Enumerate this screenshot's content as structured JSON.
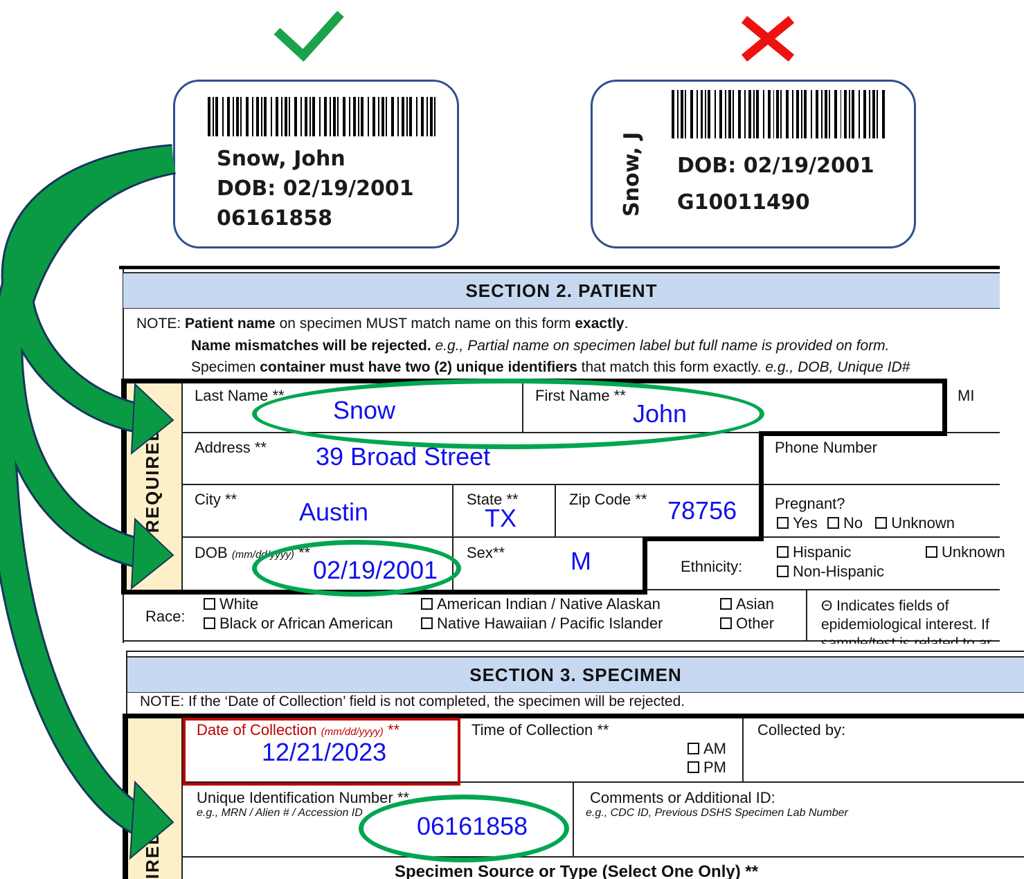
{
  "marks": {
    "correct_icon": "check-mark",
    "incorrect_icon": "x-mark",
    "check_color": "#1aa34a",
    "x_color": "#ee1111"
  },
  "good_label": {
    "name": "Snow, John",
    "dob": "DOB: 02/19/2001",
    "id": "06161858"
  },
  "bad_label": {
    "name": "Snow, J",
    "dob": "DOB: 02/19/2001",
    "id": "G10011490"
  },
  "section2": {
    "title": "SECTION 2. PATIENT",
    "note_prefix": "NOTE:",
    "note1_bold": "Patient name",
    "note1_mid": "on specimen MUST match name on this form",
    "note1_bold2": "exactly",
    "note2_bold": "Name mismatches will be rejected.",
    "note2_italic": "e.g., Partial name on specimen label but full name is provided on form.",
    "note3_a": "Specimen",
    "note3_bold": "container must have two (2) unique identifiers",
    "note3_b": "that match this form exactly.",
    "note3_italic": "e.g., DOB, Unique ID#",
    "required_label": "REQUIRED",
    "last_name_label": "Last Name **",
    "last_name_value": "Snow",
    "first_name_label": "First Name **",
    "first_name_value": "John",
    "mi_label": "MI",
    "address_label": "Address **",
    "address_value": "39 Broad Street",
    "phone_label": "Phone Number",
    "city_label": "City **",
    "city_value": "Austin",
    "state_label": "State **",
    "state_value": "TX",
    "zip_label": "Zip Code **",
    "zip_value": "78756",
    "pregnant_label": "Pregnant?",
    "pregnant_options": [
      "Yes",
      "No",
      "Unknown"
    ],
    "dob_label": "DOB",
    "dob_format": "(mm/dd/yyyy)",
    "dob_stars": "**",
    "dob_value": "02/19/2001",
    "sex_label": "Sex**",
    "sex_value": "M",
    "ethnicity_label": "Ethnicity:",
    "ethnicity_options": [
      "Hispanic",
      "Non-Hispanic",
      "Unknown"
    ],
    "race_label": "Race:",
    "race_options": [
      "White",
      "Black or African American",
      "American Indian / Native Alaskan",
      "Native Hawaiian / Pacific Islander",
      "Asian",
      "Other"
    ],
    "epi_note": [
      "Θ Indicates fields of",
      "epidemiological interest. If",
      "sample/test is related to ar"
    ]
  },
  "section3": {
    "title": "SECTION 3. SPECIMEN",
    "note": "NOTE: If the ‘Date of Collection’ field is not completed, the specimen will be rejected.",
    "required_label": "IRED",
    "date_label": "Date of Collection",
    "date_format": "(mm/dd/yyyy)",
    "date_stars": "**",
    "date_value": "12/21/2023",
    "time_label": "Time of Collection **",
    "time_options": [
      "AM",
      "PM"
    ],
    "collected_by_label": "Collected by:",
    "uid_label": "Unique Identification Number **",
    "uid_hint": "e.g., MRN / Alien # / Accession ID",
    "uid_value": "06161858",
    "comments_label": "Comments or Additional ID:",
    "comments_hint": "e.g., CDC ID, Previous DSHS Specimen Lab Number",
    "source_label": "Specimen Source or Type (Select One Only) **"
  },
  "highlight_color": "#00a651",
  "arrow_color": "#0a9a43"
}
